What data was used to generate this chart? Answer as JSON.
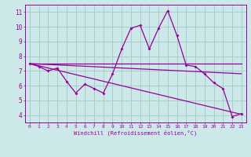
{
  "background_color": "#cce8e8",
  "grid_color": "#aacccc",
  "line_color": "#990099",
  "x_values": [
    0,
    1,
    2,
    3,
    4,
    5,
    6,
    7,
    8,
    9,
    10,
    11,
    12,
    13,
    14,
    15,
    16,
    17,
    18,
    19,
    20,
    21,
    22,
    23
  ],
  "line1": [
    7.5,
    7.3,
    7.0,
    7.2,
    6.3,
    5.5,
    6.1,
    5.8,
    5.5,
    6.8,
    8.5,
    9.9,
    10.1,
    8.5,
    9.9,
    11.1,
    9.4,
    7.4,
    7.3,
    6.8,
    6.2,
    5.8,
    3.9,
    4.1
  ],
  "line_flat": [
    7.5,
    7.5,
    7.5,
    7.5,
    7.5,
    7.5,
    7.5,
    7.5,
    7.5,
    7.5,
    7.5,
    7.5,
    7.5,
    7.5,
    7.5,
    7.5,
    7.5,
    7.5,
    7.5,
    7.5,
    7.5,
    7.5,
    7.5,
    7.5
  ],
  "line_gentle": [
    7.5,
    7.47,
    7.44,
    7.41,
    7.38,
    7.35,
    7.32,
    7.29,
    7.26,
    7.23,
    7.2,
    7.17,
    7.14,
    7.11,
    7.08,
    7.05,
    7.02,
    6.99,
    6.96,
    6.93,
    6.9,
    6.87,
    6.84,
    6.81
  ],
  "line_steep": [
    7.5,
    7.35,
    7.2,
    7.05,
    6.9,
    6.75,
    6.6,
    6.45,
    6.3,
    6.15,
    6.0,
    5.85,
    5.7,
    5.55,
    5.4,
    5.25,
    5.1,
    4.95,
    4.8,
    4.65,
    4.5,
    4.35,
    4.2,
    4.05
  ],
  "xlabel": "Windchill (Refroidissement éolien,°C)",
  "ylim": [
    3.5,
    11.5
  ],
  "xlim": [
    -0.5,
    23.5
  ],
  "yticks": [
    4,
    5,
    6,
    7,
    8,
    9,
    10,
    11
  ],
  "xticks": [
    0,
    1,
    2,
    3,
    4,
    5,
    6,
    7,
    8,
    9,
    10,
    11,
    12,
    13,
    14,
    15,
    16,
    17,
    18,
    19,
    20,
    21,
    22,
    23
  ]
}
